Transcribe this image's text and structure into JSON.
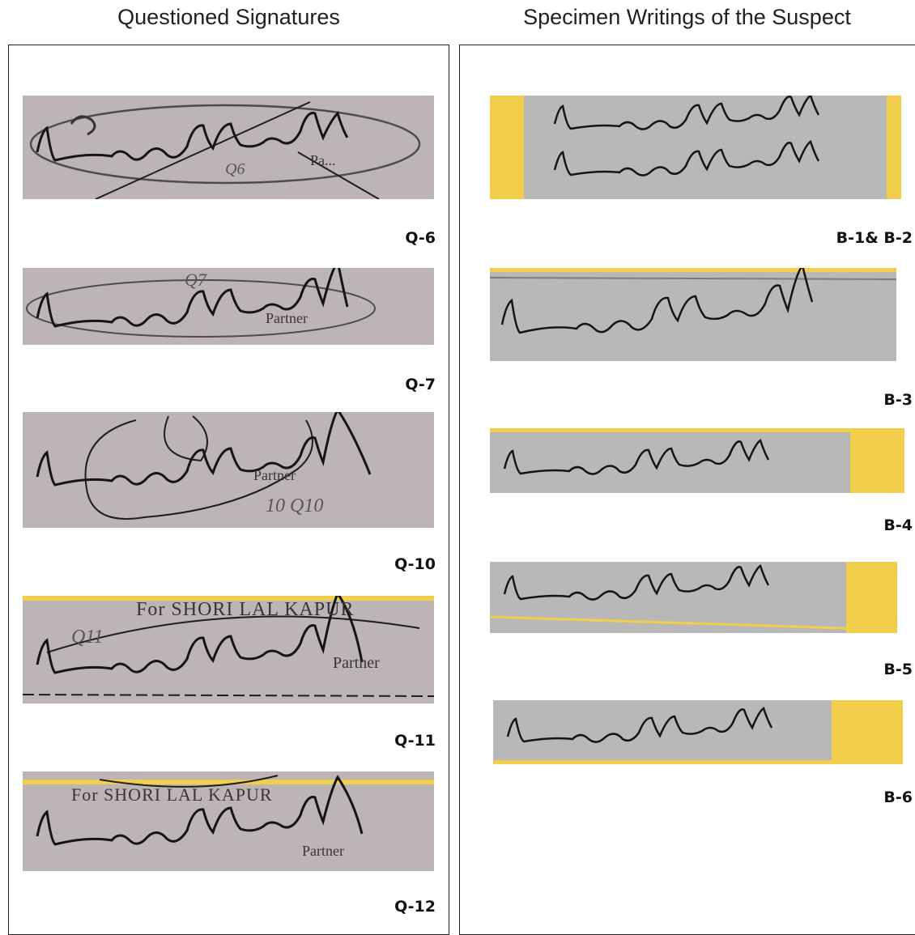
{
  "headings": {
    "left": "Questioned Signatures",
    "right": "Specimen Writings of the Suspect"
  },
  "questioned": [
    {
      "label": "Q-6",
      "printed": "Pa...",
      "marks": "Q6"
    },
    {
      "label": "Q-7",
      "printed": "Partner",
      "marks": "Q7"
    },
    {
      "label": "Q-10",
      "printed": "Partner",
      "marks": "10 Q10"
    },
    {
      "label": "Q-11",
      "printed": "Partner",
      "stamp": "For SHORI LAL KAPUR",
      "marks": "Q11"
    },
    {
      "label": "Q-12",
      "printed": "Partner",
      "stamp": "For SHORI LAL KAPUR"
    }
  ],
  "specimens": [
    {
      "label": "B-1& B-2"
    },
    {
      "label": "B-3"
    },
    {
      "label": "B-4"
    },
    {
      "label": "B-5"
    },
    {
      "label": "B-6"
    }
  ],
  "colors": {
    "questioned_paper": "#bdb4b6",
    "specimen_paper": "#b9b8b8",
    "yellow_tab": "#f2cf4a",
    "ink": "#151515"
  }
}
